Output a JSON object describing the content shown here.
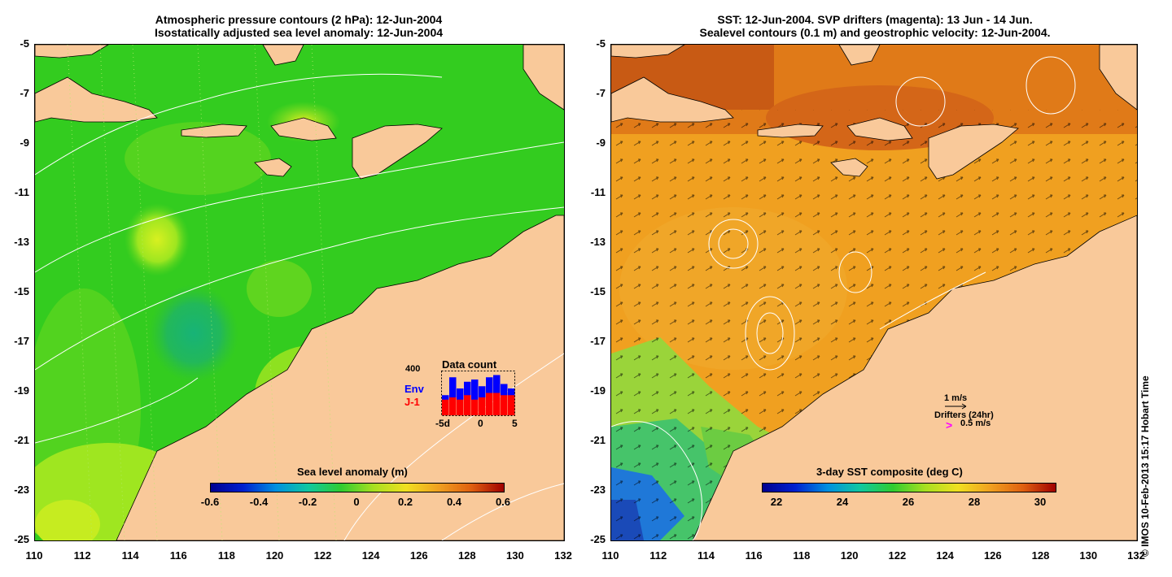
{
  "left_panel": {
    "title_line1": "Atmospheric pressure contours (2 hPa): 12-Jun-2004",
    "title_line2": "Isostatically adjusted sea level anomaly: 12-Jun-2004",
    "colorbar_title": "Sea level anomaly (m)",
    "colorbar_ticks": [
      "-0.6",
      "-0.4",
      "-0.2",
      "0",
      "0.2",
      "0.4",
      "0.6"
    ],
    "inset": {
      "title": "Data count",
      "max_label": "400",
      "legend_env": "Env",
      "legend_j1": "J-1",
      "x_ticks": [
        "-5d",
        "0",
        "5"
      ],
      "env_color": "#0000ff",
      "j1_color": "#ff0000",
      "env_bars": [
        0.45,
        0.85,
        0.6,
        0.75,
        0.8,
        0.65,
        0.85,
        0.9,
        0.7,
        0.6
      ],
      "j1_bars": [
        0.35,
        0.4,
        0.35,
        0.45,
        0.35,
        0.4,
        0.5,
        0.5,
        0.45,
        0.45
      ]
    }
  },
  "right_panel": {
    "title_line1": "SST: 12-Jun-2004. SVP drifters (magenta): 13 Jun - 14 Jun.",
    "title_line2": "Sealevel contours (0.1 m) and geostrophic velocity: 12-Jun-2004.",
    "colorbar_title": "3-day SST composite (deg C)",
    "colorbar_ticks": [
      "22",
      "24",
      "26",
      "28",
      "30"
    ],
    "velocity_scale_label": "1 m/s",
    "drifters_label": "Drifters (24hr)",
    "drifter_scale_label": "0.5 m/s",
    "drifter_symbol": ">",
    "drifter_color": "#ff00ff"
  },
  "axes": {
    "y_ticks": [
      "-5",
      "-7",
      "-9",
      "-11",
      "-13",
      "-15",
      "-17",
      "-19",
      "-21",
      "-23",
      "-25"
    ],
    "x_ticks": [
      "110",
      "112",
      "114",
      "116",
      "118",
      "120",
      "122",
      "124",
      "126",
      "128",
      "130",
      "132"
    ]
  },
  "credit": "© IMOS 10-Feb-2013 15:17 Hobart Time",
  "colors": {
    "land": "#f9c99a",
    "sla_background": "#33cc1f",
    "sst_background": "#f0a020"
  }
}
